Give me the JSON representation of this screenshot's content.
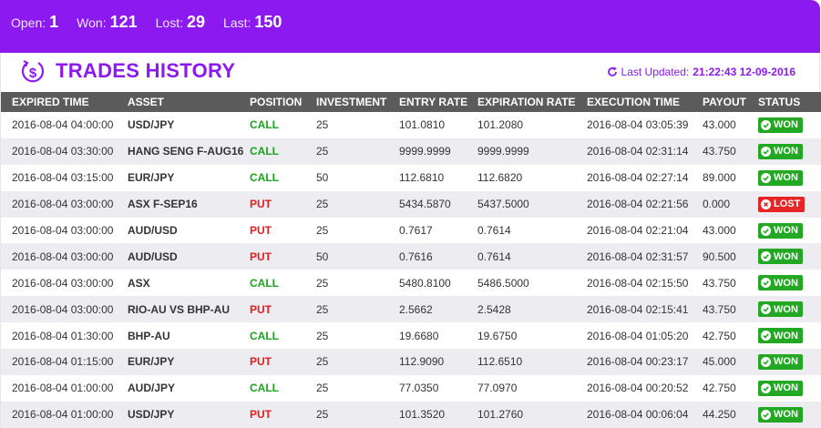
{
  "stats": [
    {
      "label": "Open:",
      "value": "1"
    },
    {
      "label": "Won:",
      "value": "121"
    },
    {
      "label": "Lost:",
      "value": "29"
    },
    {
      "label": "Last:",
      "value": "150"
    }
  ],
  "header": {
    "title": "TRADES HISTORY",
    "icon": "dollar-cycle-icon",
    "updated_label": "Last Updated:",
    "updated_value": "21:22:43 12-09-2016"
  },
  "colors": {
    "accent": "#8c19ef",
    "header_row": "#5b5b5b",
    "call": "#1aa51a",
    "put": "#e02020",
    "won": "#22a822",
    "lost": "#e62626"
  },
  "table": {
    "columns": [
      "EXPIRED TIME",
      "ASSET",
      "POSITION",
      "INVESTMENT",
      "ENTRY RATE",
      "EXPIRATION RATE",
      "EXECUTION TIME",
      "PAYOUT",
      "STATUS"
    ],
    "rows": [
      {
        "expired": "2016-08-04 04:00:00",
        "asset": "USD/JPY",
        "position": "CALL",
        "investment": "25",
        "entry": "101.0810",
        "expiration": "101.2080",
        "execution": "2016-08-04 03:05:39",
        "payout": "43.000",
        "status": "WON"
      },
      {
        "expired": "2016-08-04 03:30:00",
        "asset": "HANG SENG F-AUG16",
        "position": "CALL",
        "investment": "25",
        "entry": "9999.9999",
        "expiration": "9999.9999",
        "execution": "2016-08-04 02:31:14",
        "payout": "43.750",
        "status": "WON"
      },
      {
        "expired": "2016-08-04 03:15:00",
        "asset": "EUR/JPY",
        "position": "CALL",
        "investment": "50",
        "entry": "112.6810",
        "expiration": "112.6820",
        "execution": "2016-08-04 02:27:14",
        "payout": "89.000",
        "status": "WON"
      },
      {
        "expired": "2016-08-04 03:00:00",
        "asset": "ASX F-SEP16",
        "position": "PUT",
        "investment": "25",
        "entry": "5434.5870",
        "expiration": "5437.5000",
        "execution": "2016-08-04 02:21:56",
        "payout": "0.000",
        "status": "LOST"
      },
      {
        "expired": "2016-08-04 03:00:00",
        "asset": "AUD/USD",
        "position": "PUT",
        "investment": "25",
        "entry": "0.7617",
        "expiration": "0.7614",
        "execution": "2016-08-04 02:21:04",
        "payout": "43.000",
        "status": "WON"
      },
      {
        "expired": "2016-08-04 03:00:00",
        "asset": "AUD/USD",
        "position": "PUT",
        "investment": "50",
        "entry": "0.7616",
        "expiration": "0.7614",
        "execution": "2016-08-04 02:31:57",
        "payout": "90.500",
        "status": "WON"
      },
      {
        "expired": "2016-08-04 03:00:00",
        "asset": "ASX",
        "position": "CALL",
        "investment": "25",
        "entry": "5480.8100",
        "expiration": "5486.5000",
        "execution": "2016-08-04 02:15:50",
        "payout": "43.750",
        "status": "WON"
      },
      {
        "expired": "2016-08-04 03:00:00",
        "asset": "RIO-AU VS BHP-AU",
        "position": "PUT",
        "investment": "25",
        "entry": "2.5662",
        "expiration": "2.5428",
        "execution": "2016-08-04 02:15:41",
        "payout": "43.750",
        "status": "WON"
      },
      {
        "expired": "2016-08-04 01:30:00",
        "asset": "BHP-AU",
        "position": "CALL",
        "investment": "25",
        "entry": "19.6680",
        "expiration": "19.6750",
        "execution": "2016-08-04 01:05:20",
        "payout": "42.750",
        "status": "WON"
      },
      {
        "expired": "2016-08-04 01:15:00",
        "asset": "EUR/JPY",
        "position": "PUT",
        "investment": "25",
        "entry": "112.9090",
        "expiration": "112.6510",
        "execution": "2016-08-04 00:23:17",
        "payout": "45.000",
        "status": "WON"
      },
      {
        "expired": "2016-08-04 01:00:00",
        "asset": "AUD/JPY",
        "position": "CALL",
        "investment": "25",
        "entry": "77.0350",
        "expiration": "77.0970",
        "execution": "2016-08-04 00:20:52",
        "payout": "42.750",
        "status": "WON"
      },
      {
        "expired": "2016-08-04 01:00:00",
        "asset": "USD/JPY",
        "position": "PUT",
        "investment": "25",
        "entry": "101.3520",
        "expiration": "101.2760",
        "execution": "2016-08-04 00:06:04",
        "payout": "44.250",
        "status": "WON"
      }
    ]
  }
}
